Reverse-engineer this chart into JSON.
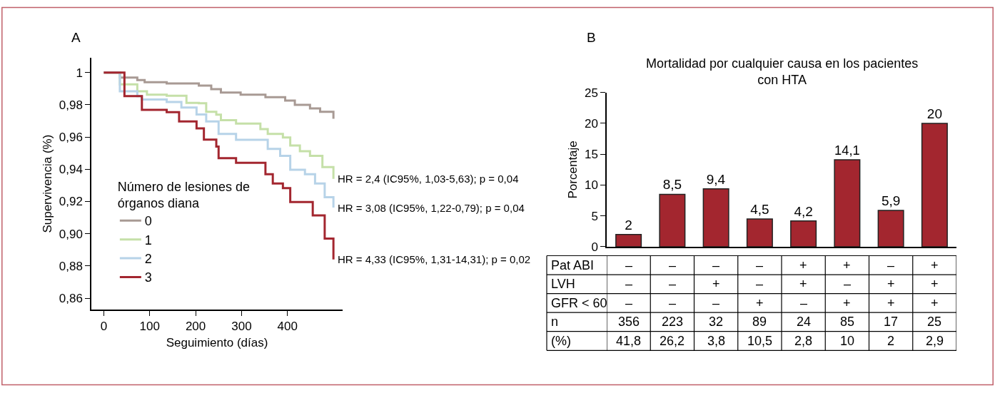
{
  "chart_data": [
    {
      "type": "step",
      "xlabel": "Seguimiento (días)",
      "ylabel": "Supervivencia (%)",
      "legend_title": "Número de lesiones de\nórganos diana",
      "legend": "bottom left",
      "grid": false,
      "xlim": [
        -27,
        520
      ],
      "xticks": [
        0,
        100,
        200,
        300,
        400
      ],
      "ylim": [
        0.853,
        1.009
      ],
      "yticks": [
        1,
        {
          "value": 0.98,
          "label": "0,98"
        },
        {
          "value": 0.96,
          "label": "0,96"
        },
        {
          "value": 0.94,
          "label": "0,94"
        },
        {
          "value": 0.92,
          "label": "0,92"
        },
        {
          "value": 0.9,
          "label": "0,90"
        },
        {
          "value": 0.88,
          "label": "0,88"
        },
        {
          "value": 0.86,
          "label": "0,86"
        }
      ],
      "series": [
        {
          "name": "0",
          "color": "#a89a94",
          "x": [
            0,
            35,
            73,
            89,
            137,
            207,
            234,
            255,
            298,
            352,
            395,
            416,
            449,
            471,
            500
          ],
          "values": [
            1,
            0.9969,
            0.9954,
            0.994,
            0.9933,
            0.9919,
            0.9897,
            0.9876,
            0.9863,
            0.9847,
            0.9826,
            0.98,
            0.9777,
            0.9756,
            0.9713
          ]
        },
        {
          "name": "1",
          "color": "#c5e0a8",
          "x": [
            0,
            35,
            73,
            94,
            137,
            180,
            207,
            223,
            245,
            255,
            288,
            341,
            357,
            390,
            406,
            427,
            449,
            476,
            500
          ],
          "values": [
            1,
            0.9927,
            0.9884,
            0.9863,
            0.9856,
            0.9812,
            0.981,
            0.9756,
            0.9739,
            0.9704,
            0.9683,
            0.9649,
            0.9619,
            0.9597,
            0.9547,
            0.9512,
            0.9483,
            0.9413,
            0.934
          ]
        },
        {
          "name": "2",
          "color": "#b7d3e8",
          "x": [
            0,
            35,
            73,
            83,
            137,
            169,
            202,
            223,
            250,
            288,
            357,
            384,
            406,
            438,
            460,
            481,
            500
          ],
          "values": [
            1,
            0.9884,
            0.9854,
            0.9833,
            0.9817,
            0.9783,
            0.974,
            0.9697,
            0.9619,
            0.9583,
            0.9526,
            0.9483,
            0.9397,
            0.9369,
            0.9312,
            0.9226,
            0.9162
          ]
        },
        {
          "name": "3",
          "color": "#a3262f",
          "x": [
            0,
            45,
            83,
            137,
            164,
            202,
            218,
            245,
            250,
            288,
            352,
            368,
            390,
            406,
            455,
            481,
            500
          ],
          "values": [
            1,
            0.9854,
            0.9769,
            0.9754,
            0.9697,
            0.9654,
            0.9584,
            0.9541,
            0.9469,
            0.944,
            0.9369,
            0.9312,
            0.9283,
            0.9197,
            0.9113,
            0.897,
            0.884
          ]
        }
      ],
      "annotations": [
        "A",
        "HR = 2,4 (IC95%, 1,03-5,63); p = 0,04",
        "HR = 3,08 (IC95%, 1,22-0,79); p = 0,04",
        "HR = 4,33 (IC95%, 1,31-14,31); p = 0,02"
      ]
    },
    {
      "type": "bar",
      "title": "Mortalidad por cualquier causa en los pacientes\ncon HTA",
      "ylabel": "Porcentaje",
      "grid": false,
      "legend": false,
      "data_labels": true,
      "ylim": [
        0,
        25
      ],
      "yticks": [
        0,
        5,
        10,
        15,
        20,
        25
      ],
      "categories": [
        "–\n–\n–\n356\n41,8",
        "–\n–\n–\n223\n26,2",
        "–\n+\n–\n32\n3,8",
        "–\n–\n+\n89\n10,5",
        "+\n+\n–\n24\n2,8",
        "+\n–\n+\n85\n10",
        "–\n+\n+\n17\n2",
        "+\n+\n+\n25\n2,9"
      ],
      "series": [
        {
          "color": "#a3262f",
          "values": [
            2,
            8.5,
            9.4,
            4.5,
            4.2,
            14.1,
            5.9,
            20
          ],
          "value_labels": [
            "2",
            "8,5",
            "9,4",
            "4,5",
            "4,2",
            "14,1",
            "5,9",
            "20"
          ]
        }
      ],
      "annotations": [
        "B",
        "Pat ABI",
        "LVH",
        "GFR < 60",
        "n",
        "(%)"
      ]
    }
  ]
}
